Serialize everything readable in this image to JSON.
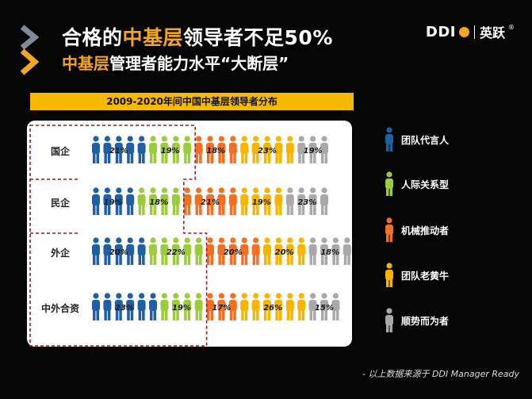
{
  "slide": {
    "title_prefix": "合格的",
    "title_highlight": "中基层",
    "title_suffix": "领导者不足50%",
    "subtitle_highlight": "中基层",
    "subtitle_suffix": "管理者能力水平“大断层”",
    "banner": "2009-2020年间中国中基层领导者分布",
    "footer": "- 以上数据来源于 DDI Manager Ready",
    "logo": {
      "left": "DDI",
      "right": "英跃",
      "mark": "®"
    }
  },
  "colors": {
    "accent": "#f5a623",
    "series": [
      "#1f5fa3",
      "#9ccc3b",
      "#f36f21",
      "#f7b500",
      "#a9a9a9"
    ]
  },
  "chart_data": {
    "type": "table",
    "title": "2009-2020年间中国中基层领导者分布",
    "rows": [
      "国企",
      "民企",
      "外企",
      "中外合资"
    ],
    "series": [
      {
        "name": "团队代言人",
        "values": [
          21,
          19,
          20,
          23
        ]
      },
      {
        "name": "人际关系型",
        "values": [
          19,
          18,
          22,
          19
        ]
      },
      {
        "name": "机械推动者",
        "values": [
          18,
          21,
          20,
          17
        ]
      },
      {
        "name": "团队老黄牛",
        "values": [
          23,
          19,
          20,
          26
        ]
      },
      {
        "name": "顺势而为者",
        "values": [
          19,
          23,
          18,
          15
        ]
      }
    ],
    "icons_per_row": [
      [
        5,
        4,
        4,
        5,
        3
      ],
      [
        4,
        4,
        5,
        4,
        4
      ],
      [
        5,
        5,
        5,
        4,
        4
      ],
      [
        6,
        4,
        3,
        6,
        3
      ]
    ],
    "highlighted_series": [
      "团队代言人",
      "人际关系型"
    ]
  }
}
